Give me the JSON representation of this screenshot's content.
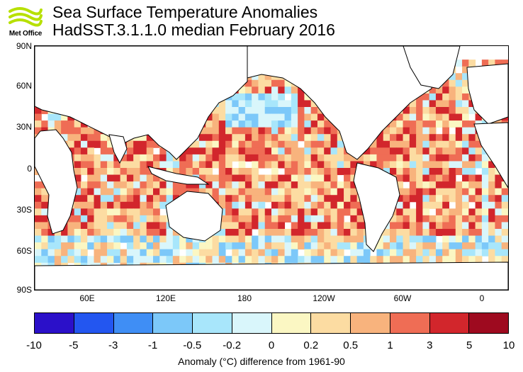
{
  "logo": {
    "name": "met-office-logo",
    "text": "Met Office",
    "color": "#b7e000"
  },
  "title": "Sea Surface Temperature Anomalies",
  "subtitle": "HadSST.3.1.1.0 median February 2016",
  "map": {
    "lat_labels": [
      "90N",
      "60N",
      "30N",
      "0",
      "30S",
      "60S",
      "90S"
    ],
    "lon_labels": [
      "60E",
      "120E",
      "180",
      "120W",
      "60W",
      "0"
    ],
    "land_color": "#ffffff",
    "coast_color": "#000000"
  },
  "colorbar": {
    "colors": [
      "#2b10c9",
      "#2356f0",
      "#3f8ef5",
      "#7cc8f9",
      "#a8e6fb",
      "#d9f6fb",
      "#fbf7c3",
      "#fcdca2",
      "#f8b37d",
      "#ef6d55",
      "#d2262c",
      "#9e0a1f"
    ],
    "ticks": [
      "-10",
      "-5",
      "-3",
      "-1",
      "-0.5",
      "-0.2",
      "0",
      "0.2",
      "0.5",
      "1",
      "3",
      "5",
      "10"
    ],
    "label": "Anomaly (°C) difference from 1961-90"
  }
}
